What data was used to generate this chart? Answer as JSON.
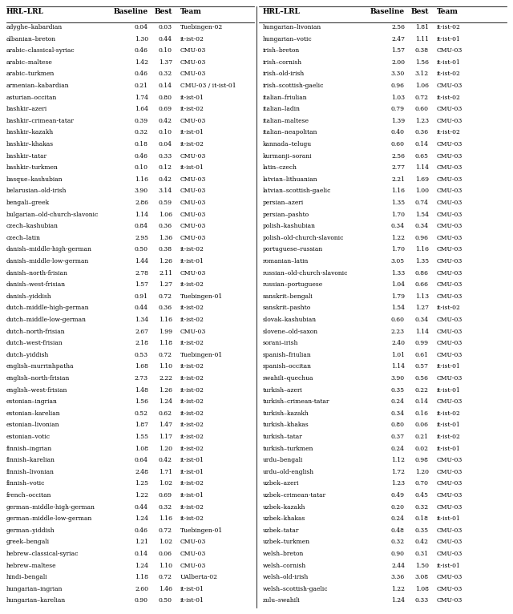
{
  "left_data": [
    [
      "adyghe–kabardian",
      "0.04",
      "0.03",
      "Tuebingen-02"
    ],
    [
      "albanian–breton",
      "1.30",
      "0.44",
      "it-ist-02"
    ],
    [
      "arabic–classical-syriac",
      "0.46",
      "0.10",
      "CMU-03"
    ],
    [
      "arabic–maltese",
      "1.42",
      "1.37",
      "CMU-03"
    ],
    [
      "arabic–turkmen",
      "0.46",
      "0.32",
      "CMU-03"
    ],
    [
      "armenian–kabardian",
      "0.21",
      "0.14",
      "CMU-03 / it-ist-01"
    ],
    [
      "asturian–occitan",
      "1.74",
      "0.80",
      "it-ist-01"
    ],
    [
      "bashkir–azeri",
      "1.64",
      "0.69",
      "it-ist-02"
    ],
    [
      "bashkir–crimean-tatar",
      "0.39",
      "0.42",
      "CMU-03"
    ],
    [
      "bashkir–kazakh",
      "0.32",
      "0.10",
      "it-ist-01"
    ],
    [
      "bashkir–khakas",
      "0.18",
      "0.04",
      "it-ist-02"
    ],
    [
      "bashkir–tatar",
      "0.46",
      "0.33",
      "CMU-03"
    ],
    [
      "bashkir–turkmen",
      "0.10",
      "0.12",
      "it-ist-01"
    ],
    [
      "basque–kashubian",
      "1.16",
      "0.42",
      "CMU-03"
    ],
    [
      "belarusian–old-irish",
      "3.90",
      "3.14",
      "CMU-03"
    ],
    [
      "bengali–greek",
      "2.86",
      "0.59",
      "CMU-03"
    ],
    [
      "bulgarian–old-church-slavonic",
      "1.14",
      "1.06",
      "CMU-03"
    ],
    [
      "czech–kashubian",
      "0.84",
      "0.36",
      "CMU-03"
    ],
    [
      "czech–latin",
      "2.95",
      "1.36",
      "CMU-03"
    ],
    [
      "danish–middle-high-german",
      "0.50",
      "0.38",
      "it-ist-02"
    ],
    [
      "danish–middle-low-german",
      "1.44",
      "1.26",
      "it-ist-01"
    ],
    [
      "danish–north-frisian",
      "2.78",
      "2.11",
      "CMU-03"
    ],
    [
      "danish–west-frisian",
      "1.57",
      "1.27",
      "it-ist-02"
    ],
    [
      "danish–yiddish",
      "0.91",
      "0.72",
      "Tuebingen-01"
    ],
    [
      "dutch–middle-high-german",
      "0.44",
      "0.36",
      "it-ist-02"
    ],
    [
      "dutch–middle-low-german",
      "1.34",
      "1.16",
      "it-ist-02"
    ],
    [
      "dutch–north-frisian",
      "2.67",
      "1.99",
      "CMU-03"
    ],
    [
      "dutch–west-frisian",
      "2.18",
      "1.18",
      "it-ist-02"
    ],
    [
      "dutch–yiddish",
      "0.53",
      "0.72",
      "Tuebingen-01"
    ],
    [
      "english–murrinhpatha",
      "1.68",
      "1.10",
      "it-ist-02"
    ],
    [
      "english–north-frisian",
      "2.73",
      "2.22",
      "it-ist-02"
    ],
    [
      "english–west-frisian",
      "1.48",
      "1.26",
      "it-ist-02"
    ],
    [
      "estonian–ingrian",
      "1.56",
      "1.24",
      "it-ist-02"
    ],
    [
      "estonian–karelian",
      "0.52",
      "0.62",
      "it-ist-02"
    ],
    [
      "estonian–livonian",
      "1.87",
      "1.47",
      "it-ist-02"
    ],
    [
      "estonian–votic",
      "1.55",
      "1.17",
      "it-ist-02"
    ],
    [
      "finnish–ingrian",
      "1.08",
      "1.20",
      "it-ist-02"
    ],
    [
      "finnish–karelian",
      "0.64",
      "0.42",
      "it-ist-01"
    ],
    [
      "finnish–livonian",
      "2.48",
      "1.71",
      "it-ist-01"
    ],
    [
      "finnish–votic",
      "1.25",
      "1.02",
      "it-ist-02"
    ],
    [
      "french–occitan",
      "1.22",
      "0.69",
      "it-ist-01"
    ],
    [
      "german–middle-high-german",
      "0.44",
      "0.32",
      "it-ist-02"
    ],
    [
      "german–middle-low-german",
      "1.24",
      "1.16",
      "it-ist-02"
    ],
    [
      "german–yiddish",
      "0.46",
      "0.72",
      "Tuebingen-01"
    ],
    [
      "greek–bengali",
      "1.21",
      "1.02",
      "CMU-03"
    ],
    [
      "hebrew–classical-syriac",
      "0.14",
      "0.06",
      "CMU-03"
    ],
    [
      "hebrew–maltese",
      "1.24",
      "1.10",
      "CMU-03"
    ],
    [
      "hindi–bengali",
      "1.18",
      "0.72",
      "UAlberta-02"
    ],
    [
      "hungarian–ingrian",
      "2.60",
      "1.46",
      "it-ist-01"
    ],
    [
      "hungarian–karelian",
      "0.90",
      "0.50",
      "it-ist-01"
    ]
  ],
  "right_data": [
    [
      "hungarian–livonian",
      "2.56",
      "1.81",
      "it-ist-02"
    ],
    [
      "hungarian–votic",
      "2.47",
      "1.11",
      "it-ist-01"
    ],
    [
      "irish–breton",
      "1.57",
      "0.38",
      "CMU-03"
    ],
    [
      "irish–cornish",
      "2.00",
      "1.56",
      "it-ist-01"
    ],
    [
      "irish–old-irish",
      "3.30",
      "3.12",
      "it-ist-02"
    ],
    [
      "irish–scottish-gaelic",
      "0.96",
      "1.06",
      "CMU-03"
    ],
    [
      "italian–friulian",
      "1.03",
      "0.72",
      "it-ist-02"
    ],
    [
      "italian–ladin",
      "0.79",
      "0.60",
      "CMU-03"
    ],
    [
      "italian–maltese",
      "1.39",
      "1.23",
      "CMU-03"
    ],
    [
      "italian–neapolitan",
      "0.40",
      "0.36",
      "it-ist-02"
    ],
    [
      "kannada–telugu",
      "0.60",
      "0.14",
      "CMU-03"
    ],
    [
      "kurmanji–sorani",
      "2.56",
      "0.65",
      "CMU-03"
    ],
    [
      "latin–czech",
      "2.77",
      "1.14",
      "CMU-03"
    ],
    [
      "latvian–lithuanian",
      "2.21",
      "1.69",
      "CMU-03"
    ],
    [
      "latvian–scottish-gaelic",
      "1.16",
      "1.00",
      "CMU-03"
    ],
    [
      "persian–azeri",
      "1.35",
      "0.74",
      "CMU-03"
    ],
    [
      "persian–pashto",
      "1.70",
      "1.54",
      "CMU-03"
    ],
    [
      "polish–kashubian",
      "0.34",
      "0.34",
      "CMU-03"
    ],
    [
      "polish–old-church-slavonic",
      "1.22",
      "0.96",
      "CMU-03"
    ],
    [
      "portuguese–russian",
      "1.70",
      "1.16",
      "CMU-03"
    ],
    [
      "romanian–latin",
      "3.05",
      "1.35",
      "CMU-03"
    ],
    [
      "russian–old-church-slavonic",
      "1.33",
      "0.86",
      "CMU-03"
    ],
    [
      "russian–portuguese",
      "1.04",
      "0.66",
      "CMU-03"
    ],
    [
      "sanskrit–bengali",
      "1.79",
      "1.13",
      "CMU-03"
    ],
    [
      "sanskrit–pashto",
      "1.54",
      "1.27",
      "it-ist-02"
    ],
    [
      "slovak–kashubian",
      "0.60",
      "0.34",
      "CMU-03"
    ],
    [
      "slovene–old-saxon",
      "2.23",
      "1.14",
      "CMU-03"
    ],
    [
      "sorani–irish",
      "2.40",
      "0.99",
      "CMU-03"
    ],
    [
      "spanish–friulian",
      "1.01",
      "0.61",
      "CMU-03"
    ],
    [
      "spanish–occitan",
      "1.14",
      "0.57",
      "it-ist-01"
    ],
    [
      "swahili–quechua",
      "3.90",
      "0.56",
      "CMU-03"
    ],
    [
      "turkish–azeri",
      "0.35",
      "0.22",
      "it-ist-01"
    ],
    [
      "turkish–crimean-tatar",
      "0.24",
      "0.14",
      "CMU-03"
    ],
    [
      "turkish–kazakh",
      "0.34",
      "0.16",
      "it-ist-02"
    ],
    [
      "turkish–khakas",
      "0.80",
      "0.06",
      "it-ist-01"
    ],
    [
      "turkish–tatar",
      "0.37",
      "0.21",
      "it-ist-02"
    ],
    [
      "turkish–turkmen",
      "0.24",
      "0.02",
      "it-ist-01"
    ],
    [
      "urdu–bengali",
      "1.12",
      "0.98",
      "CMU-03"
    ],
    [
      "urdu–old-english",
      "1.72",
      "1.20",
      "CMU-03"
    ],
    [
      "uzbek–azeri",
      "1.23",
      "0.70",
      "CMU-03"
    ],
    [
      "uzbek–crimean-tatar",
      "0.49",
      "0.45",
      "CMU-03"
    ],
    [
      "uzbek–kazakh",
      "0.20",
      "0.32",
      "CMU-03"
    ],
    [
      "uzbek–khakas",
      "0.24",
      "0.18",
      "it-ist-01"
    ],
    [
      "uzbek–tatar",
      "0.48",
      "0.35",
      "CMU-03"
    ],
    [
      "uzbek–turkmen",
      "0.32",
      "0.42",
      "CMU-03"
    ],
    [
      "welsh–breton",
      "0.90",
      "0.31",
      "CMU-03"
    ],
    [
      "welsh–cornish",
      "2.44",
      "1.50",
      "it-ist-01"
    ],
    [
      "welsh–old-irish",
      "3.36",
      "3.08",
      "CMU-03"
    ],
    [
      "welsh–scottish-gaelic",
      "1.22",
      "1.08",
      "CMU-03"
    ],
    [
      "zulu–swahili",
      "1.24",
      "0.33",
      "CMU-03"
    ]
  ],
  "header": [
    "HRL–LRL",
    "Baseline",
    "Best",
    "Team"
  ],
  "bg_color": "#ffffff",
  "text_color": "#000000",
  "header_color": "#000000",
  "font_size": 5.5,
  "header_font_size": 6.5,
  "fig_width": 6.4,
  "fig_height": 7.66,
  "dpi": 100
}
